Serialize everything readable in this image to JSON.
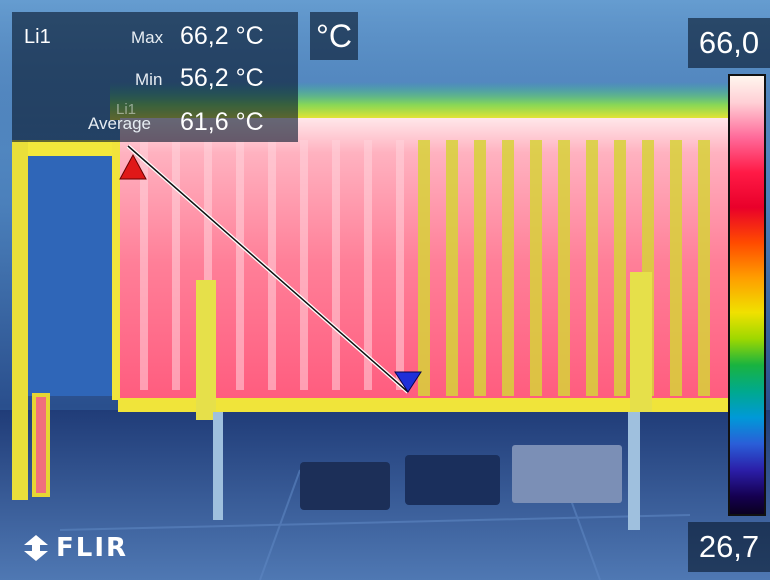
{
  "measurement": {
    "line_label": "Li1",
    "max_label": "Max",
    "max_value": "66,2 °C",
    "min_label": "Min",
    "min_value": "56,2 °C",
    "avg_label": "Average",
    "avg_value": "61,6 °C",
    "overlay_tag": "Li1"
  },
  "unit": "°C",
  "scale": {
    "max": "66,0",
    "min": "26,7"
  },
  "brand": "FLIR",
  "colors": {
    "hot_marker": "#e01818",
    "cold_marker": "#1e2fd8",
    "line": "#ffffff"
  }
}
